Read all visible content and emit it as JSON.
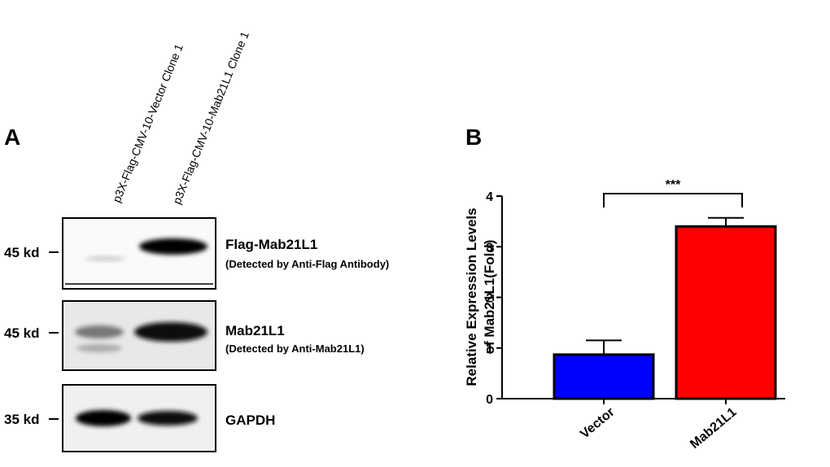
{
  "panel_a": {
    "label": "A",
    "lanes": [
      "p3X-Flag-CMV-10-Vector Clone 1",
      "p3X-Flag-CMV-10-Mab21L1 Clone 1"
    ],
    "blots": [
      {
        "marker": "45 kd",
        "label": "Flag-Mab21L1",
        "note": "(Detected by Anti-Flag Antibody)"
      },
      {
        "marker": "45 kd",
        "label": "Mab21L1",
        "note": "(Detected by Anti-Mab21L1)"
      },
      {
        "marker": "35 kd",
        "label": "GAPDH"
      }
    ]
  },
  "chart_data": {
    "type": "bar",
    "panel_label": "B",
    "y_label": [
      "Relative Expression Levels",
      "of Mab21L1(Fold)"
    ],
    "categories": [
      "Vector",
      "Mab21L1"
    ],
    "values": [
      0.87,
      3.4
    ],
    "errors": [
      0.28,
      0.17
    ],
    "colors": [
      "#0000ff",
      "#ff0000"
    ],
    "ylim": [
      0,
      4
    ],
    "yticks": [
      0,
      1,
      2,
      3,
      4
    ],
    "annotation": "***"
  }
}
